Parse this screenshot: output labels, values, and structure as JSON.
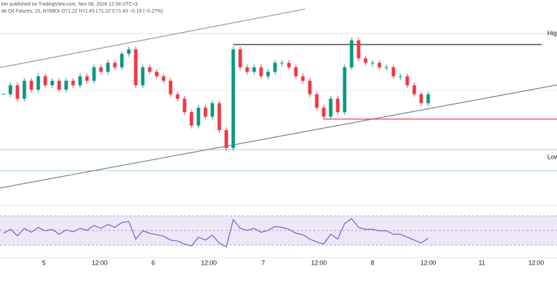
{
  "header": {
    "line1": "ker published on TradingView.com, Nov 08, 2024 12:34 UTC+3",
    "line2": "de Oil Futures, 15, NYMEX  O71.22  H71.45  L71.22  C71.43  −0.19 (−0.27%)"
  },
  "levels": {
    "high": "High",
    "low": "Low"
  },
  "chart_data": {
    "type": "candlestick",
    "x_labels": [
      "5",
      "12:00",
      "6",
      "12:00",
      "7",
      "12:00",
      "8",
      "12:00",
      "11",
      "12:00"
    ],
    "up_color": "#089981",
    "down_color": "#f23645",
    "ylim": [
      68.5,
      73
    ],
    "closes": [
      70.9,
      71.1,
      70.8,
      71.2,
      71.0,
      71.3,
      71.1,
      71.2,
      71.0,
      71.2,
      71.1,
      71.3,
      71.2,
      71.5,
      71.4,
      71.6,
      71.5,
      71.8,
      71.9,
      71.1,
      71.5,
      71.4,
      71.3,
      71.2,
      70.9,
      70.8,
      70.5,
      70.2,
      70.6,
      70.4,
      70.7,
      70.1,
      69.7,
      71.9,
      71.5,
      71.4,
      71.5,
      71.3,
      71.4,
      71.6,
      71.6,
      71.5,
      71.3,
      71.2,
      70.9,
      70.6,
      70.4,
      70.8,
      70.5,
      71.5,
      72.1,
      71.7,
      71.6,
      71.6,
      71.5,
      71.5,
      71.3,
      71.3,
      71.1,
      70.9,
      70.7,
      70.9
    ],
    "rsi_color": "#7e57c2",
    "rsi_ylim": [
      0,
      100
    ],
    "rsi": [
      50,
      58,
      45,
      60,
      52,
      62,
      55,
      58,
      48,
      57,
      53,
      60,
      56,
      66,
      60,
      68,
      62,
      72,
      74,
      38,
      55,
      50,
      47,
      44,
      36,
      34,
      28,
      24,
      42,
      36,
      46,
      30,
      22,
      78,
      60,
      56,
      60,
      52,
      56,
      64,
      62,
      58,
      50,
      47,
      38,
      32,
      28,
      48,
      38,
      70,
      80,
      62,
      58,
      58,
      55,
      55,
      48,
      48,
      42,
      36,
      30,
      40
    ]
  }
}
